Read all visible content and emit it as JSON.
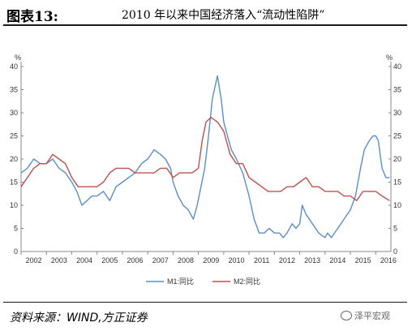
{
  "header": {
    "figure_label": "图表13:",
    "title": "2010 年以来中国经济落入“流动性陷阱”"
  },
  "footer": {
    "source": "资料来源：WIND,方正证券",
    "watermark": "泽平宏观"
  },
  "colors": {
    "m1": "#5b8ec6",
    "m2": "#c0504d",
    "axis": "#888888"
  },
  "chart_data": {
    "type": "line",
    "y_unit_left": "%",
    "y_unit_right": "%",
    "ylim": [
      0,
      40
    ],
    "yticks": [
      0,
      5,
      10,
      15,
      20,
      25,
      30,
      35,
      40
    ],
    "xlim": [
      2002,
      2016.6
    ],
    "xticks": [
      "2002",
      "2003",
      "2004",
      "2005",
      "2006",
      "2007",
      "2008",
      "2009",
      "2010",
      "2011",
      "2012",
      "2013",
      "2014",
      "2015",
      "2016"
    ],
    "grid": false,
    "legend_position": "bottom",
    "series": [
      {
        "name": "M1:同比",
        "color": "#5b8ec6",
        "x": [
          2002.0,
          2002.25,
          2002.5,
          2002.75,
          2003.0,
          2003.25,
          2003.5,
          2003.75,
          2004.0,
          2004.2,
          2004.4,
          2004.6,
          2004.8,
          2005.0,
          2005.25,
          2005.5,
          2005.75,
          2006.0,
          2006.25,
          2006.5,
          2006.75,
          2007.0,
          2007.25,
          2007.5,
          2007.7,
          2007.9,
          2008.0,
          2008.2,
          2008.4,
          2008.6,
          2008.8,
          2008.95,
          2009.1,
          2009.25,
          2009.4,
          2009.55,
          2009.75,
          2009.9,
          2010.0,
          2010.15,
          2010.3,
          2010.5,
          2010.75,
          2011.0,
          2011.2,
          2011.4,
          2011.6,
          2011.8,
          2012.0,
          2012.2,
          2012.35,
          2012.5,
          2012.7,
          2012.85,
          2013.0,
          2013.1,
          2013.25,
          2013.5,
          2013.75,
          2014.0,
          2014.1,
          2014.25,
          2014.5,
          2014.75,
          2015.0,
          2015.2,
          2015.4,
          2015.55,
          2015.75,
          2015.9,
          2016.0,
          2016.1,
          2016.25,
          2016.4,
          2016.55
        ],
        "values": [
          17,
          18,
          20,
          19,
          19,
          20,
          18,
          17,
          15,
          13,
          10,
          11,
          12,
          12,
          13,
          11,
          14,
          15,
          16,
          17,
          19,
          20,
          22,
          21,
          20,
          18,
          15,
          12,
          10,
          9,
          7,
          10,
          14,
          18,
          25,
          33,
          38,
          33,
          28,
          25,
          22,
          20,
          17,
          12,
          7,
          4,
          4,
          5,
          4,
          4,
          3,
          4,
          6,
          5,
          6,
          10,
          8,
          6,
          4,
          3,
          4,
          3,
          5,
          7,
          9,
          12,
          18,
          22,
          24,
          25,
          25,
          24,
          18,
          16,
          16
        ]
      },
      {
        "name": "M2:同比",
        "color": "#c0504d",
        "x": [
          2002.0,
          2002.25,
          2002.5,
          2002.75,
          2003.0,
          2003.25,
          2003.5,
          2003.75,
          2004.0,
          2004.25,
          2004.5,
          2004.75,
          2005.0,
          2005.25,
          2005.5,
          2005.75,
          2006.0,
          2006.25,
          2006.5,
          2006.75,
          2007.0,
          2007.25,
          2007.5,
          2007.75,
          2008.0,
          2008.25,
          2008.5,
          2008.75,
          2009.0,
          2009.15,
          2009.3,
          2009.5,
          2009.75,
          2010.0,
          2010.25,
          2010.5,
          2010.75,
          2011.0,
          2011.25,
          2011.5,
          2011.75,
          2012.0,
          2012.25,
          2012.5,
          2012.75,
          2013.0,
          2013.25,
          2013.5,
          2013.75,
          2014.0,
          2014.25,
          2014.5,
          2014.75,
          2015.0,
          2015.25,
          2015.5,
          2015.75,
          2016.0,
          2016.25,
          2016.55
        ],
        "values": [
          14,
          16,
          18,
          19,
          19,
          21,
          20,
          19,
          16,
          14,
          14,
          14,
          14,
          15,
          17,
          18,
          18,
          18,
          17,
          17,
          17,
          17,
          18,
          18,
          16,
          17,
          17,
          17,
          18,
          24,
          28,
          29,
          28,
          26,
          21,
          19,
          19,
          16,
          15,
          14,
          13,
          13,
          13,
          14,
          14,
          15,
          16,
          14,
          14,
          13,
          13,
          13,
          12,
          12,
          11,
          13,
          13,
          13,
          12,
          11
        ]
      }
    ]
  }
}
